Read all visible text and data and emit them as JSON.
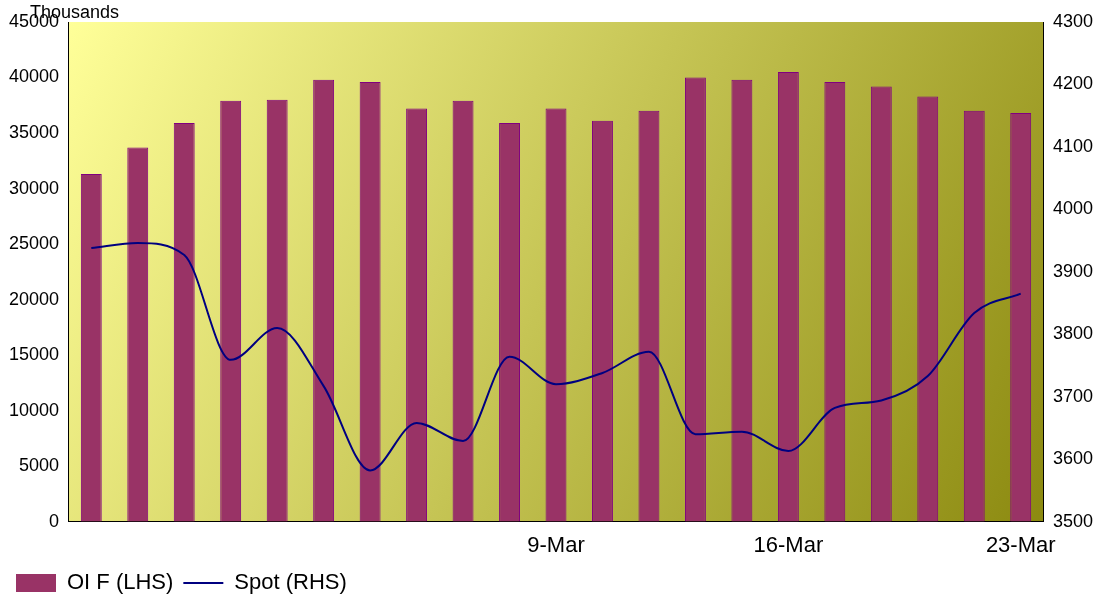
{
  "chart_data": {
    "type": "bar",
    "ylabel": "Thousands",
    "categories": [
      null,
      null,
      null,
      null,
      null,
      null,
      null,
      null,
      null,
      null,
      "9-Mar",
      null,
      null,
      null,
      null,
      "16-Mar",
      null,
      null,
      null,
      null,
      "23-Mar"
    ],
    "series": [
      {
        "name": "OI F (LHS)",
        "color": "#993366",
        "values": [
          31300,
          33700,
          35900,
          37900,
          38000,
          39800,
          39600,
          37200,
          37900,
          35900,
          37200,
          36100,
          37000,
          40000,
          39800,
          40500,
          39600,
          39200,
          38300,
          37000,
          36800
        ]
      },
      {
        "name": "Spot (RHS)",
        "type": "line",
        "axis": "y2",
        "color": "#000080",
        "values": [
          3938,
          3946,
          3927,
          3759,
          3810,
          3717,
          3582,
          3658,
          3629,
          3764,
          3720,
          3738,
          3772,
          3640,
          3644,
          3613,
          3682,
          3694,
          3733,
          3834,
          3865
        ]
      }
    ],
    "ylim": [
      0,
      45000
    ],
    "yticks": [
      0,
      5000,
      10000,
      15000,
      20000,
      25000,
      30000,
      35000,
      40000,
      45000
    ],
    "y2lim": [
      3500,
      4300
    ],
    "y2ticks": [
      3500,
      3600,
      3700,
      3800,
      3900,
      4000,
      4100,
      4200,
      4300
    ],
    "grid": false,
    "legend": "bottom left",
    "marker": "none",
    "line_style": "solid"
  }
}
